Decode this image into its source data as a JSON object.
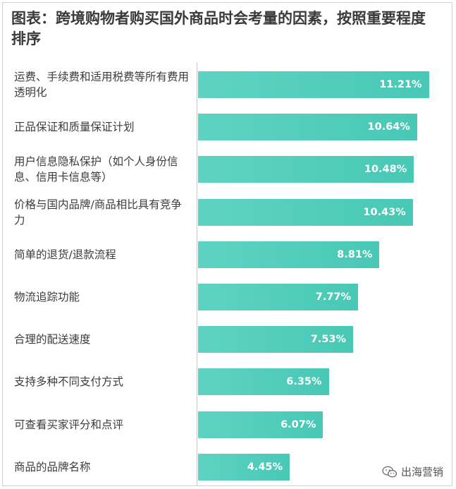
{
  "title": "图表：跨境购物者购买国外商品时会考量的因素，按照重要程度排序",
  "watermark": {
    "text": "出海营销",
    "icon": "wechat-icon"
  },
  "colors": {
    "bar": "#4fcdb9",
    "value_text": "#ffffff",
    "label_text": "#3c3c3c"
  },
  "chart_data": {
    "type": "bar",
    "orientation": "horizontal",
    "title": "图表：跨境购物者购买国外商品时会考量的因素，按照重要程度排序",
    "xlabel": "",
    "ylabel": "",
    "categories": [
      "运费、手续费和适用税费等所有费用透明化",
      "正品保证和质量保证计划",
      "用户信息隐私保护（如个人身份信息、信用卡信息等）",
      "价格与国内品牌/商品相比具有竞争力",
      "简单的退货/退款流程",
      "物流追踪功能",
      "合理的配送速度",
      "支持多种不同支付方式",
      "可查看买家评分和点评",
      "商品的品牌名称"
    ],
    "values": [
      11.21,
      10.64,
      10.48,
      10.43,
      8.81,
      7.77,
      7.53,
      6.35,
      6.07,
      4.45
    ],
    "value_labels": [
      "11.21%",
      "10.64%",
      "10.48%",
      "10.43%",
      "8.81%",
      "7.77%",
      "7.53%",
      "6.35%",
      "6.07%",
      "4.45%"
    ],
    "xlim": [
      0,
      11.6
    ],
    "grid": false,
    "legend": "none"
  }
}
